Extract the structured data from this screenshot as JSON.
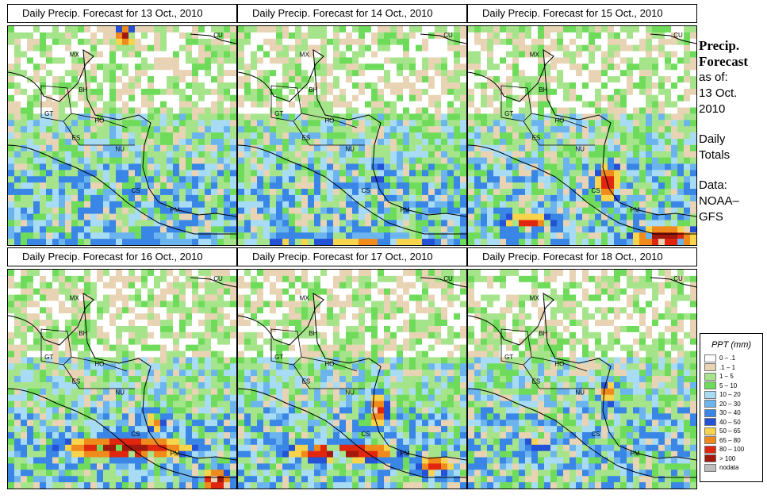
{
  "panels": [
    {
      "title": "Daily Precip. Forecast for  13 Oct., 2010",
      "seed": 11,
      "mode": 0
    },
    {
      "title": "Daily Precip. Forecast for  14 Oct., 2010",
      "seed": 23,
      "mode": 1
    },
    {
      "title": "Daily Precip. Forecast for  15 Oct., 2010",
      "seed": 37,
      "mode": 2
    },
    {
      "title": "Daily Precip. Forecast for  16 Oct., 2010",
      "seed": 41,
      "mode": 3
    },
    {
      "title": "Daily Precip. Forecast for  17 Oct., 2010",
      "seed": 53,
      "mode": 4
    },
    {
      "title": "Daily Precip. Forecast for  18 Oct., 2010",
      "seed": 67,
      "mode": 5
    }
  ],
  "country_labels": [
    "MX",
    "BH",
    "GT",
    "HO",
    "ES",
    "NU",
    "CS",
    "PM",
    "CU"
  ],
  "side": {
    "title1": "Precip.",
    "title2": "Forecast",
    "asof": "as of:",
    "date1": "13 Oct.",
    "date2": "2010",
    "daily1": "Daily",
    "daily2": "Totals",
    "data1": "Data:",
    "data2": "NOAA–",
    "data3": "GFS"
  },
  "legend": {
    "title": "PPT (mm)",
    "items": [
      {
        "label": "0 – .1",
        "color": "#ffffff"
      },
      {
        "label": ".1 – 1",
        "color": "#e8d4b4"
      },
      {
        "label": "1 – 5",
        "color": "#a6e48c"
      },
      {
        "label": "5 – 10",
        "color": "#6edc5a"
      },
      {
        "label": "10 – 20",
        "color": "#a8dcf4"
      },
      {
        "label": "20 – 30",
        "color": "#6cb4ee"
      },
      {
        "label": "30 – 40",
        "color": "#3a86e6"
      },
      {
        "label": "40 – 50",
        "color": "#2352d6"
      },
      {
        "label": "50 – 65",
        "color": "#f8d44c"
      },
      {
        "label": "65 – 80",
        "color": "#f08a1c"
      },
      {
        "label": "80 – 100",
        "color": "#e0260e"
      },
      {
        "label": "> 100",
        "color": "#a0180e"
      },
      {
        "label": "nodata",
        "color": "#bdbdbd"
      }
    ]
  }
}
